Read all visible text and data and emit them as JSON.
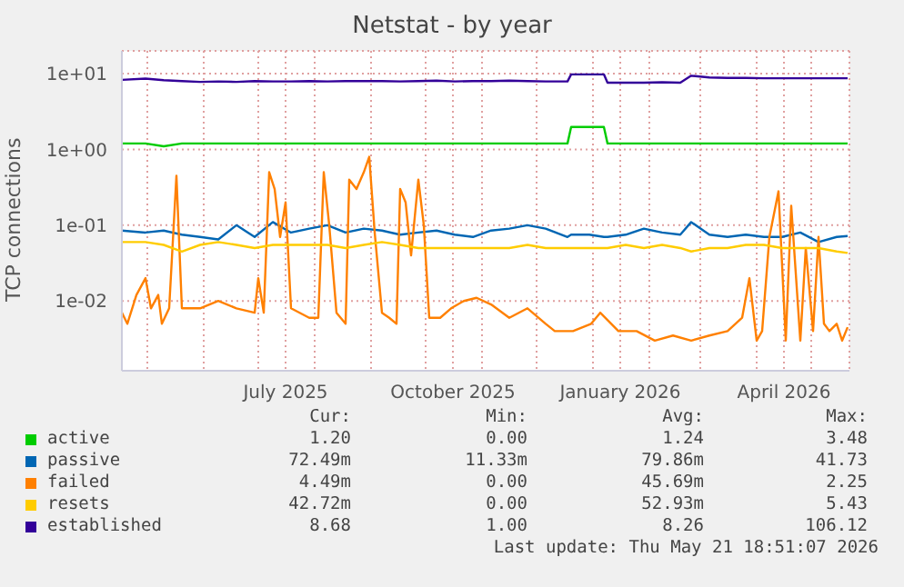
{
  "chart_data": {
    "type": "line",
    "title": "Netstat - by year",
    "ylabel": "TCP connections",
    "log": "y",
    "grid": true,
    "legend": "bottom",
    "xlim": [
      "2025-04-17",
      "2026-05-22"
    ],
    "xticks": [
      {
        "value": "2025-05-01",
        "label": null
      },
      {
        "value": "2025-06-01",
        "label": null
      },
      {
        "value": "2025-07-01",
        "label": null
      },
      {
        "value": "2025-07-16",
        "label": "July 2025"
      },
      {
        "value": "2025-08-01",
        "label": null
      },
      {
        "value": "2025-09-01",
        "label": null
      },
      {
        "value": "2025-10-01",
        "label": null
      },
      {
        "value": "2025-10-16",
        "label": "October 2025"
      },
      {
        "value": "2025-11-01",
        "label": null
      },
      {
        "value": "2025-12-01",
        "label": null
      },
      {
        "value": "2026-01-01",
        "label": null
      },
      {
        "value": "2026-01-16",
        "label": "January 2026"
      },
      {
        "value": "2026-02-01",
        "label": null
      },
      {
        "value": "2026-03-01",
        "label": null
      },
      {
        "value": "2026-04-01",
        "label": null
      },
      {
        "value": "2026-04-16",
        "label": "April 2026"
      },
      {
        "value": "2026-05-01",
        "label": null
      }
    ],
    "ylim": [
      0.0012,
      20
    ],
    "yticks": [
      {
        "value": 0.01,
        "label": "1e-02"
      },
      {
        "value": 0.1,
        "label": "1e-01"
      },
      {
        "value": 1,
        "label": "1e+00"
      },
      {
        "value": 10,
        "label": "1e+01"
      }
    ],
    "x": [
      "2025-04-17",
      "2025-04-30",
      "2025-05-10",
      "2025-05-20",
      "2025-05-30",
      "2025-06-09",
      "2025-06-19",
      "2025-06-29",
      "2025-07-09",
      "2025-07-19",
      "2025-07-29",
      "2025-08-08",
      "2025-08-18",
      "2025-08-28",
      "2025-09-07",
      "2025-09-17",
      "2025-09-27",
      "2025-10-07",
      "2025-10-17",
      "2025-10-27",
      "2025-11-06",
      "2025-11-16",
      "2025-11-26",
      "2025-12-06",
      "2025-12-18",
      "2025-12-20",
      "2025-12-30",
      "2026-01-07",
      "2026-01-09",
      "2026-01-19",
      "2026-01-29",
      "2026-02-08",
      "2026-02-18",
      "2026-02-24",
      "2026-03-06",
      "2026-03-16",
      "2026-03-26",
      "2026-04-05",
      "2026-04-15",
      "2026-04-25",
      "2026-05-05",
      "2026-05-15",
      "2026-05-21"
    ],
    "series": [
      {
        "name": "active",
        "color": "#00cc00",
        "values": [
          1.2,
          1.2,
          1.1,
          1.2,
          1.2,
          1.2,
          1.2,
          1.2,
          1.2,
          1.2,
          1.2,
          1.2,
          1.2,
          1.2,
          1.2,
          1.2,
          1.2,
          1.2,
          1.2,
          1.2,
          1.2,
          1.2,
          1.2,
          1.2,
          1.2,
          1.98,
          1.98,
          1.98,
          1.2,
          1.2,
          1.2,
          1.2,
          1.2,
          1.2,
          1.2,
          1.2,
          1.2,
          1.2,
          1.2,
          1.2,
          1.2,
          1.2,
          1.2
        ]
      },
      {
        "name": "passive",
        "color": "#0066b3",
        "values": [
          0.085,
          0.08,
          0.085,
          0.075,
          0.07,
          0.065,
          0.1,
          0.07,
          0.11,
          0.08,
          0.09,
          0.1,
          0.08,
          0.09,
          0.085,
          0.075,
          0.08,
          0.085,
          0.075,
          0.07,
          0.085,
          0.09,
          0.1,
          0.09,
          0.07,
          0.075,
          0.075,
          0.07,
          0.07,
          0.075,
          0.09,
          0.08,
          0.075,
          0.11,
          0.075,
          0.07,
          0.075,
          0.07,
          0.07,
          0.08,
          0.06,
          0.07,
          0.072
        ]
      },
      {
        "name": "failed",
        "color": "#ff8000",
        "x": [
          "2025-04-17",
          "2025-04-20",
          "2025-04-25",
          "2025-04-30",
          "2025-05-03",
          "2025-05-07",
          "2025-05-09",
          "2025-05-13",
          "2025-05-17",
          "2025-05-20",
          "2025-05-30",
          "2025-06-09",
          "2025-06-19",
          "2025-06-29",
          "2025-07-01",
          "2025-07-04",
          "2025-07-07",
          "2025-07-10",
          "2025-07-13",
          "2025-07-16",
          "2025-07-19",
          "2025-07-29",
          "2025-08-03",
          "2025-08-06",
          "2025-08-09",
          "2025-08-13",
          "2025-08-18",
          "2025-08-20",
          "2025-08-24",
          "2025-08-28",
          "2025-08-31",
          "2025-09-03",
          "2025-09-07",
          "2025-09-11",
          "2025-09-15",
          "2025-09-17",
          "2025-09-20",
          "2025-09-23",
          "2025-09-27",
          "2025-09-30",
          "2025-10-03",
          "2025-10-09",
          "2025-10-15",
          "2025-10-22",
          "2025-10-29",
          "2025-11-06",
          "2025-11-16",
          "2025-11-26",
          "2025-12-06",
          "2025-12-11",
          "2025-12-21",
          "2025-12-31",
          "2026-01-05",
          "2026-01-15",
          "2026-01-25",
          "2026-02-04",
          "2026-02-14",
          "2026-02-24",
          "2026-03-06",
          "2026-03-16",
          "2026-03-24",
          "2026-03-28",
          "2026-04-01",
          "2026-04-04",
          "2026-04-08",
          "2026-04-13",
          "2026-04-17",
          "2026-04-20",
          "2026-04-25",
          "2026-04-28",
          "2026-05-02",
          "2026-05-05",
          "2026-05-08",
          "2026-05-11",
          "2026-05-15",
          "2026-05-18",
          "2026-05-21"
        ],
        "values": [
          0.007,
          0.005,
          0.012,
          0.02,
          0.008,
          0.012,
          0.005,
          0.008,
          0.45,
          0.008,
          0.008,
          0.01,
          0.008,
          0.007,
          0.02,
          0.007,
          0.5,
          0.3,
          0.07,
          0.2,
          0.008,
          0.006,
          0.006,
          0.5,
          0.1,
          0.007,
          0.005,
          0.4,
          0.3,
          0.5,
          0.8,
          0.08,
          0.007,
          0.006,
          0.005,
          0.3,
          0.2,
          0.04,
          0.4,
          0.1,
          0.006,
          0.006,
          0.008,
          0.01,
          0.011,
          0.009,
          0.006,
          0.008,
          0.005,
          0.004,
          0.004,
          0.005,
          0.007,
          0.004,
          0.004,
          0.003,
          0.0035,
          0.003,
          0.0035,
          0.004,
          0.006,
          0.02,
          0.003,
          0.004,
          0.07,
          0.28,
          0.003,
          0.18,
          0.003,
          0.05,
          0.004,
          0.07,
          0.005,
          0.004,
          0.005,
          0.003,
          0.0045
        ]
      },
      {
        "name": "resets",
        "color": "#ffcc00",
        "values": [
          0.06,
          0.06,
          0.055,
          0.045,
          0.055,
          0.06,
          0.055,
          0.05,
          0.055,
          0.055,
          0.055,
          0.055,
          0.05,
          0.055,
          0.06,
          0.055,
          0.05,
          0.05,
          0.05,
          0.05,
          0.05,
          0.05,
          0.055,
          0.05,
          0.05,
          0.05,
          0.05,
          0.05,
          0.05,
          0.055,
          0.05,
          0.055,
          0.05,
          0.045,
          0.05,
          0.05,
          0.055,
          0.055,
          0.05,
          0.05,
          0.05,
          0.045,
          0.043
        ]
      },
      {
        "name": "established",
        "color": "#330099",
        "values": [
          8.3,
          8.6,
          8.2,
          8.0,
          7.8,
          7.9,
          7.8,
          8.0,
          7.9,
          7.9,
          8.0,
          7.9,
          8.0,
          8.0,
          8.0,
          7.9,
          8.0,
          8.1,
          7.9,
          8.0,
          8.0,
          8.1,
          8.0,
          7.9,
          7.9,
          9.8,
          9.8,
          9.8,
          7.6,
          7.6,
          7.6,
          7.7,
          7.6,
          9.4,
          8.9,
          8.8,
          8.8,
          8.7,
          8.7,
          8.7,
          8.7,
          8.7,
          8.7
        ]
      }
    ],
    "annotations": [
      "Cur:",
      "Min:",
      "Avg:",
      "Max:",
      "1.20",
      "0.00",
      "1.24",
      "3.48",
      "72.49m",
      "11.33m",
      "79.86m",
      "41.73",
      "4.49m",
      "0.00",
      "45.69m",
      "2.25",
      "42.72m",
      "0.00",
      "52.93m",
      "5.43",
      "8.68",
      "1.00",
      "8.26",
      "106.12",
      "Last update: Thu May 21 18:51:07 2026"
    ]
  }
}
